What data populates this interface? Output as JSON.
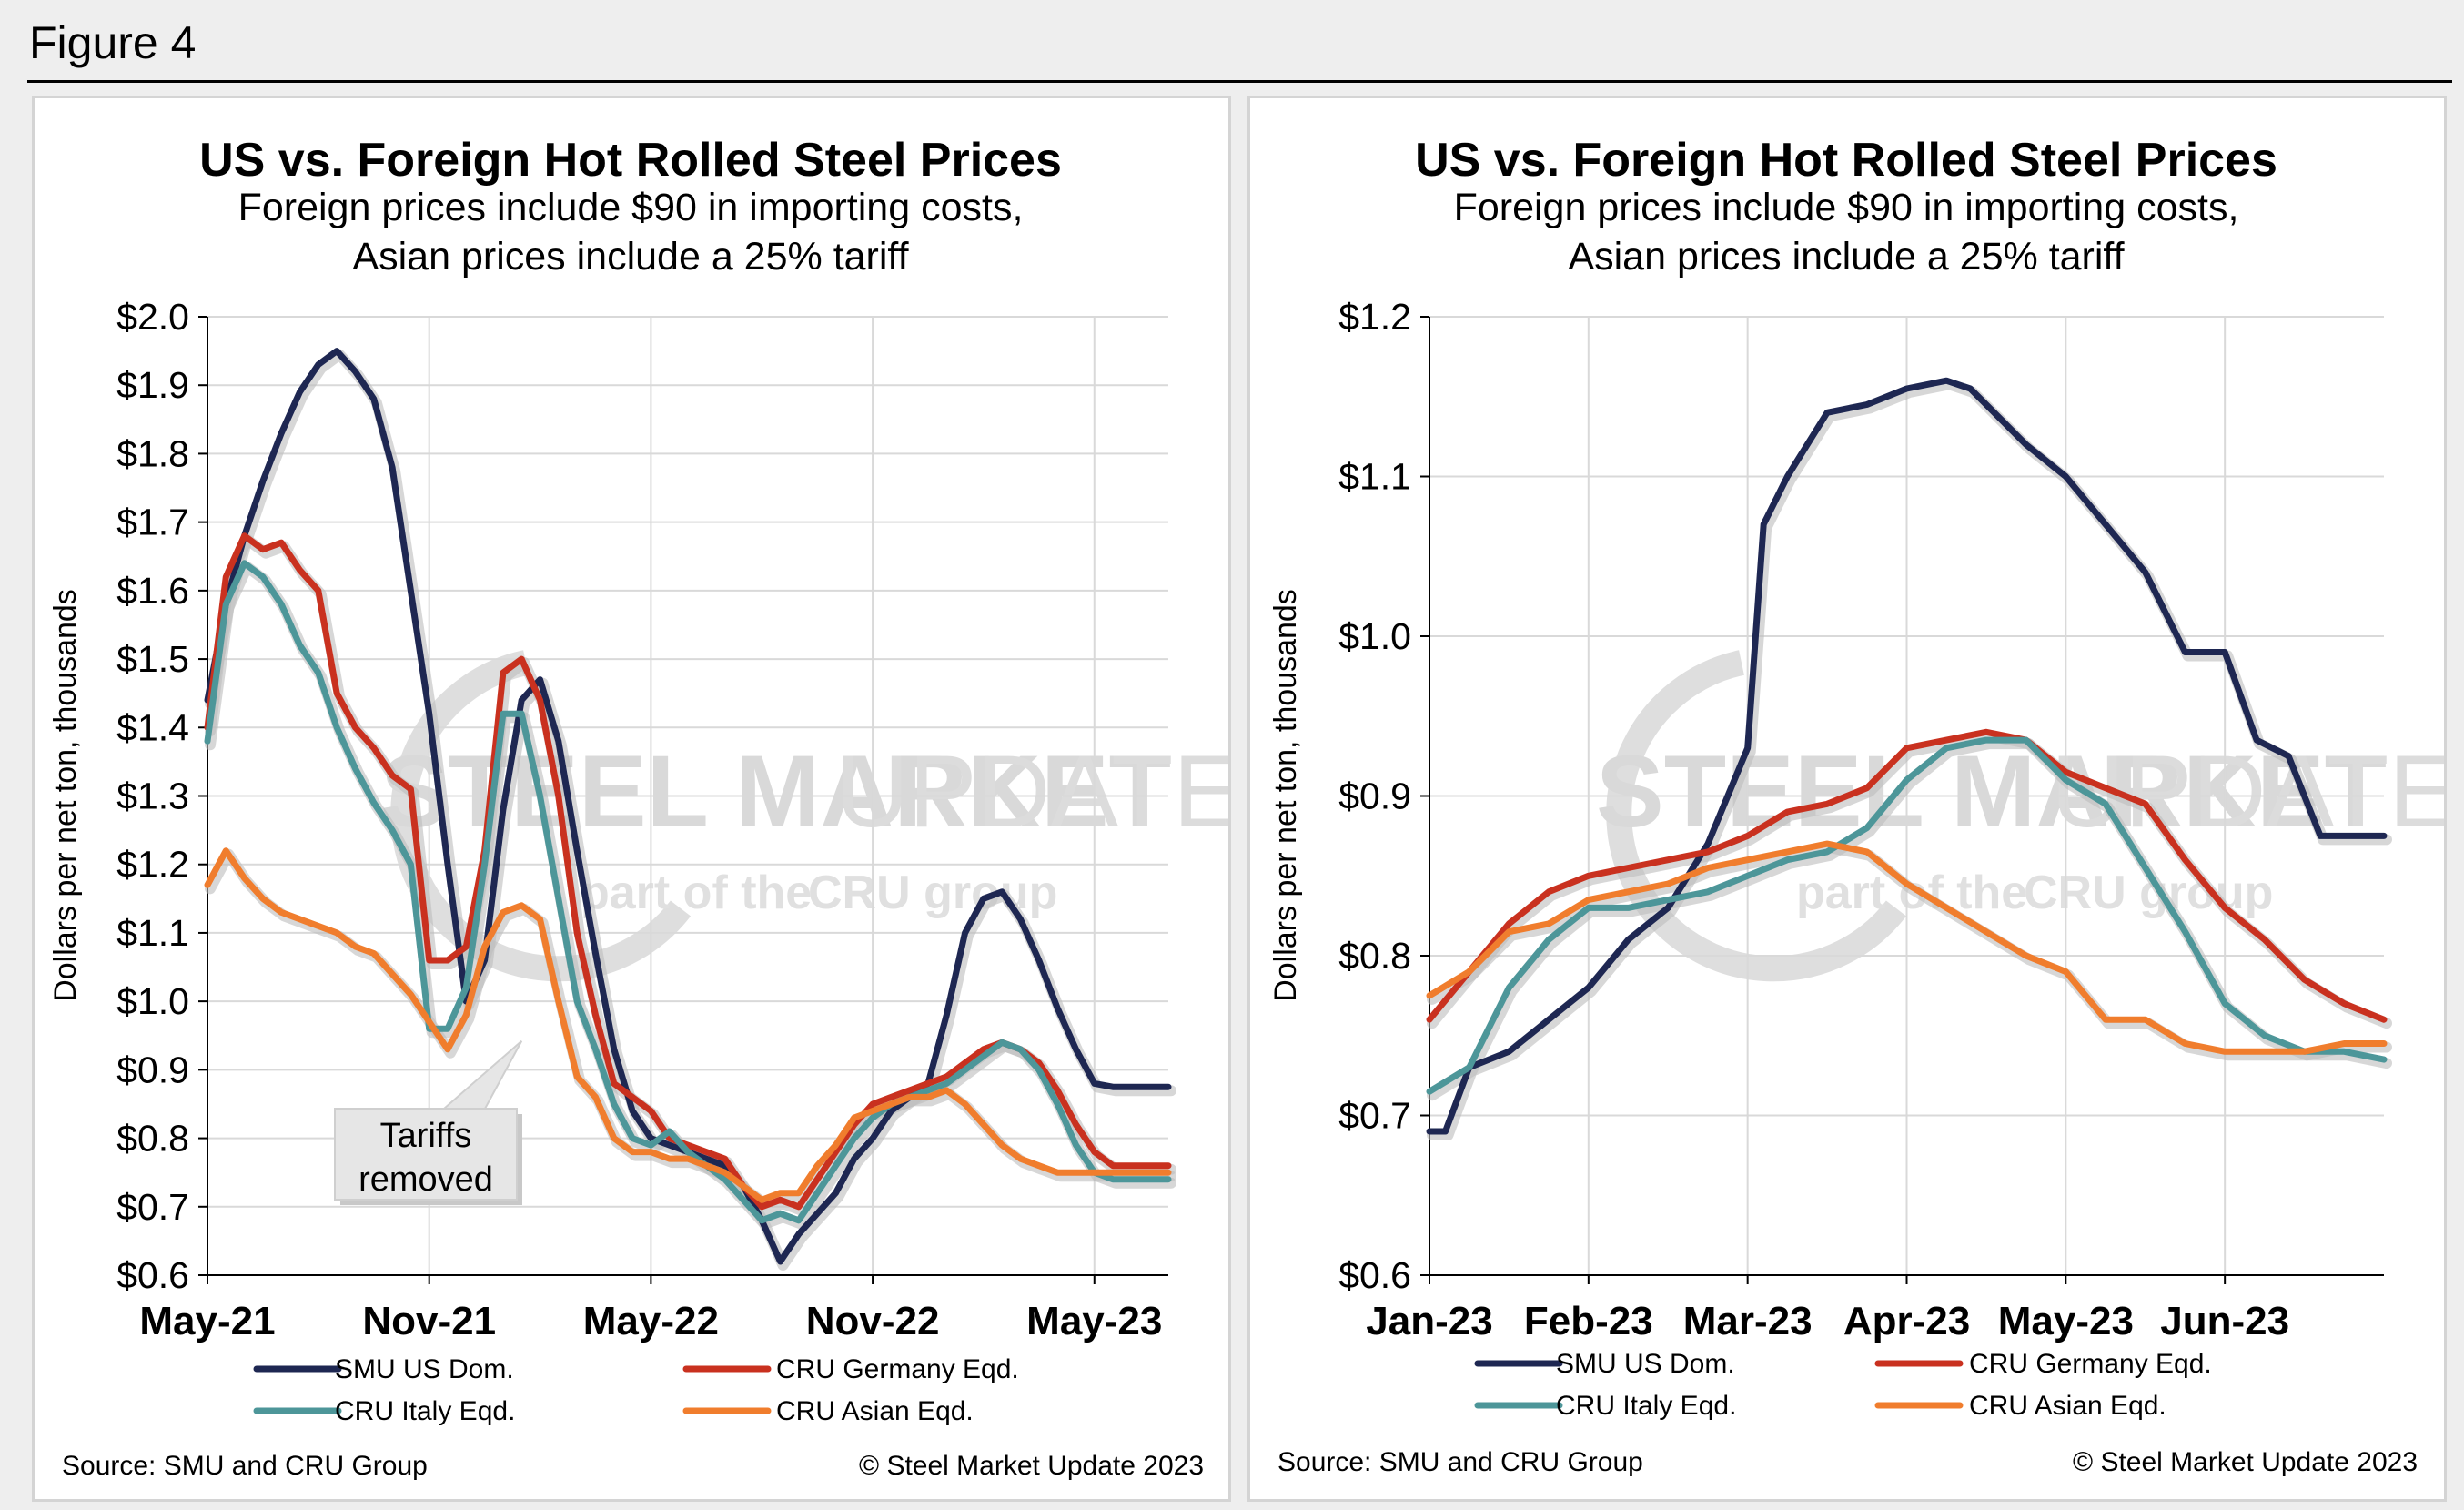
{
  "figure_label": "Figure 4",
  "watermark": {
    "brand": "STEEL MARKET",
    "brand2": "UPDATE",
    "tagline": "part of the",
    "group": "CRU group"
  },
  "colors": {
    "smu": "#1e2752",
    "germany": "#c9311f",
    "italy": "#4d9699",
    "asian": "#f07d2d"
  },
  "chart_data": [
    {
      "type": "line",
      "title": "US vs. Foreign Hot Rolled Steel Prices",
      "subtitle_line1": "Foreign prices include $90 in importing costs,",
      "subtitle_line2": "Asian prices include a 25% tariff",
      "ylabel": "Dollars per net ton, thousands",
      "ylim": [
        0.6,
        2.0
      ],
      "yticks": [
        0.6,
        0.7,
        0.8,
        0.9,
        1.0,
        1.1,
        1.2,
        1.3,
        1.4,
        1.5,
        1.6,
        1.7,
        1.8,
        1.9,
        2.0
      ],
      "ytick_labels": [
        "$0.6",
        "$0.7",
        "$0.8",
        "$0.9",
        "$1.0",
        "$1.1",
        "$1.2",
        "$1.3",
        "$1.4",
        "$1.5",
        "$1.6",
        "$1.7",
        "$1.8",
        "$1.9",
        "$2.0"
      ],
      "xlim": [
        0,
        26
      ],
      "xticks": [
        0,
        6,
        12,
        18,
        24
      ],
      "xtick_labels": [
        "May-21",
        "Nov-21",
        "May-22",
        "Nov-22",
        "May-23"
      ],
      "annotation": {
        "line1": "Tariffs",
        "line2": "removed",
        "x": 8.5,
        "y": 0.95
      },
      "series": [
        {
          "name": "SMU US Dom.",
          "color_key": "smu",
          "x": [
            0,
            0.5,
            1,
            1.5,
            2,
            2.5,
            3,
            3.5,
            4,
            4.5,
            5,
            5.5,
            6,
            6.5,
            7,
            7.5,
            8,
            8.5,
            9,
            9.5,
            10,
            10.5,
            11,
            11.5,
            12,
            12.5,
            13,
            13.5,
            14,
            14.5,
            15,
            15.5,
            16,
            16.5,
            17,
            17.5,
            18,
            18.5,
            19,
            19.5,
            20,
            20.5,
            21,
            21.5,
            22,
            22.5,
            23,
            23.5,
            24,
            24.5,
            25,
            25.5,
            26
          ],
          "y": [
            1.44,
            1.58,
            1.68,
            1.76,
            1.83,
            1.89,
            1.93,
            1.95,
            1.92,
            1.88,
            1.78,
            1.6,
            1.42,
            1.2,
            1.0,
            1.06,
            1.28,
            1.44,
            1.47,
            1.38,
            1.22,
            1.07,
            0.93,
            0.84,
            0.8,
            0.79,
            0.78,
            0.77,
            0.76,
            0.73,
            0.68,
            0.62,
            0.66,
            0.69,
            0.72,
            0.77,
            0.8,
            0.84,
            0.86,
            0.88,
            0.98,
            1.1,
            1.15,
            1.16,
            1.12,
            1.06,
            0.99,
            0.93,
            0.88,
            0.875,
            0.875,
            0.875,
            0.875
          ]
        },
        {
          "name": "CRU Germany Eqd.",
          "color_key": "germany",
          "x": [
            0,
            0.5,
            1,
            1.5,
            2,
            2.5,
            3,
            3.5,
            4,
            4.5,
            5,
            5.5,
            6,
            6.5,
            7,
            7.5,
            8,
            8.5,
            9,
            9.5,
            10,
            10.5,
            11,
            11.5,
            12,
            12.5,
            13,
            13.5,
            14,
            14.5,
            15,
            15.5,
            16,
            16.5,
            17,
            17.5,
            18,
            18.5,
            19,
            19.5,
            20,
            20.5,
            21,
            21.5,
            22,
            22.5,
            23,
            23.5,
            24,
            24.5,
            25,
            25.5,
            26
          ],
          "y": [
            1.4,
            1.62,
            1.68,
            1.66,
            1.67,
            1.63,
            1.6,
            1.45,
            1.4,
            1.37,
            1.33,
            1.31,
            1.06,
            1.06,
            1.08,
            1.22,
            1.48,
            1.5,
            1.44,
            1.3,
            1.1,
            0.98,
            0.88,
            0.86,
            0.84,
            0.8,
            0.79,
            0.78,
            0.77,
            0.73,
            0.7,
            0.71,
            0.7,
            0.74,
            0.78,
            0.82,
            0.85,
            0.86,
            0.87,
            0.88,
            0.89,
            0.91,
            0.93,
            0.94,
            0.93,
            0.91,
            0.87,
            0.82,
            0.78,
            0.76,
            0.76,
            0.76,
            0.76
          ]
        },
        {
          "name": "CRU Italy Eqd.",
          "color_key": "italy",
          "x": [
            0,
            0.5,
            1,
            1.5,
            2,
            2.5,
            3,
            3.5,
            4,
            4.5,
            5,
            5.5,
            6,
            6.5,
            7,
            7.5,
            8,
            8.5,
            9,
            9.5,
            10,
            10.5,
            11,
            11.5,
            12,
            12.5,
            13,
            13.5,
            14,
            14.5,
            15,
            15.5,
            16,
            16.5,
            17,
            17.5,
            18,
            18.5,
            19,
            19.5,
            20,
            20.5,
            21,
            21.5,
            22,
            22.5,
            23,
            23.5,
            24,
            24.5,
            25,
            25.5,
            26
          ],
          "y": [
            1.38,
            1.58,
            1.64,
            1.62,
            1.58,
            1.52,
            1.48,
            1.4,
            1.34,
            1.29,
            1.25,
            1.2,
            0.96,
            0.96,
            1.02,
            1.2,
            1.42,
            1.42,
            1.3,
            1.15,
            1.0,
            0.93,
            0.85,
            0.8,
            0.79,
            0.81,
            0.78,
            0.76,
            0.74,
            0.71,
            0.68,
            0.69,
            0.68,
            0.72,
            0.76,
            0.8,
            0.83,
            0.85,
            0.86,
            0.87,
            0.88,
            0.9,
            0.92,
            0.94,
            0.93,
            0.9,
            0.85,
            0.79,
            0.75,
            0.74,
            0.74,
            0.74,
            0.74
          ]
        },
        {
          "name": "CRU Asian Eqd.",
          "color_key": "asian",
          "x": [
            0,
            0.5,
            1,
            1.5,
            2,
            2.5,
            3,
            3.5,
            4,
            4.5,
            5,
            5.5,
            6,
            6.5,
            7,
            7.5,
            8,
            8.5,
            9,
            9.5,
            10,
            10.5,
            11,
            11.5,
            12,
            12.5,
            13,
            13.5,
            14,
            14.5,
            15,
            15.5,
            16,
            16.5,
            17,
            17.5,
            18,
            18.5,
            19,
            19.5,
            20,
            20.5,
            21,
            21.5,
            22,
            22.5,
            23,
            23.5,
            24,
            24.5,
            25,
            25.5,
            26
          ],
          "y": [
            1.17,
            1.22,
            1.18,
            1.15,
            1.13,
            1.12,
            1.11,
            1.1,
            1.08,
            1.07,
            1.04,
            1.01,
            0.97,
            0.93,
            0.98,
            1.08,
            1.13,
            1.14,
            1.12,
            1.0,
            0.89,
            0.86,
            0.8,
            0.78,
            0.78,
            0.77,
            0.77,
            0.76,
            0.75,
            0.73,
            0.71,
            0.72,
            0.72,
            0.76,
            0.79,
            0.83,
            0.84,
            0.85,
            0.86,
            0.86,
            0.87,
            0.85,
            0.82,
            0.79,
            0.77,
            0.76,
            0.75,
            0.75,
            0.75,
            0.75,
            0.75,
            0.75,
            0.75
          ]
        }
      ]
    },
    {
      "type": "line",
      "title": "US vs. Foreign Hot Rolled Steel Prices",
      "subtitle_line1": "Foreign prices include $90 in importing costs,",
      "subtitle_line2": "Asian prices include a 25% tariff",
      "ylabel": "Dollars per net ton, thousands",
      "ylim": [
        0.6,
        1.2
      ],
      "yticks": [
        0.6,
        0.7,
        0.8,
        0.9,
        1.0,
        1.1,
        1.2
      ],
      "ytick_labels": [
        "$0.6",
        "$0.7",
        "$0.8",
        "$0.9",
        "$1.0",
        "$1.1",
        "$1.2"
      ],
      "xlim": [
        0,
        6
      ],
      "xticks": [
        0,
        1,
        2,
        3,
        4,
        5
      ],
      "xtick_labels": [
        "Jan-23",
        "Feb-23",
        "Mar-23",
        "Apr-23",
        "May-23",
        "Jun-23"
      ],
      "series": [
        {
          "name": "SMU US Dom.",
          "color_key": "smu",
          "x": [
            0,
            0.1,
            0.25,
            0.5,
            0.75,
            1,
            1.25,
            1.5,
            1.75,
            2,
            2.1,
            2.25,
            2.5,
            2.75,
            3,
            3.25,
            3.4,
            3.5,
            3.75,
            4,
            4.25,
            4.5,
            4.75,
            5,
            5.2,
            5.4,
            5.6,
            5.75,
            6
          ],
          "y": [
            0.69,
            0.69,
            0.73,
            0.74,
            0.76,
            0.78,
            0.81,
            0.83,
            0.87,
            0.93,
            1.07,
            1.1,
            1.14,
            1.145,
            1.155,
            1.16,
            1.155,
            1.145,
            1.12,
            1.1,
            1.07,
            1.04,
            0.99,
            0.99,
            0.935,
            0.925,
            0.875,
            0.875,
            0.875
          ]
        },
        {
          "name": "CRU Germany Eqd.",
          "color_key": "germany",
          "x": [
            0,
            0.25,
            0.5,
            0.75,
            1,
            1.25,
            1.5,
            1.75,
            2,
            2.25,
            2.5,
            2.75,
            3,
            3.25,
            3.5,
            3.75,
            4,
            4.25,
            4.5,
            4.75,
            5,
            5.25,
            5.5,
            5.75,
            6
          ],
          "y": [
            0.76,
            0.79,
            0.82,
            0.84,
            0.85,
            0.855,
            0.86,
            0.865,
            0.875,
            0.89,
            0.895,
            0.905,
            0.93,
            0.935,
            0.94,
            0.935,
            0.915,
            0.905,
            0.895,
            0.86,
            0.83,
            0.81,
            0.785,
            0.77,
            0.76
          ]
        },
        {
          "name": "CRU Italy Eqd.",
          "color_key": "italy",
          "x": [
            0,
            0.25,
            0.5,
            0.75,
            1,
            1.25,
            1.5,
            1.75,
            2,
            2.25,
            2.5,
            2.75,
            3,
            3.25,
            3.5,
            3.75,
            4,
            4.25,
            4.5,
            4.75,
            5,
            5.25,
            5.5,
            5.75,
            6
          ],
          "y": [
            0.715,
            0.73,
            0.78,
            0.81,
            0.83,
            0.83,
            0.835,
            0.84,
            0.85,
            0.86,
            0.865,
            0.88,
            0.91,
            0.93,
            0.935,
            0.935,
            0.91,
            0.895,
            0.855,
            0.815,
            0.77,
            0.75,
            0.74,
            0.74,
            0.735
          ]
        },
        {
          "name": "CRU Asian Eqd.",
          "color_key": "asian",
          "x": [
            0,
            0.25,
            0.5,
            0.75,
            1,
            1.25,
            1.5,
            1.75,
            2,
            2.25,
            2.5,
            2.75,
            3,
            3.25,
            3.5,
            3.75,
            4,
            4.25,
            4.5,
            4.75,
            5,
            5.25,
            5.5,
            5.75,
            6
          ],
          "y": [
            0.775,
            0.79,
            0.815,
            0.82,
            0.835,
            0.84,
            0.845,
            0.855,
            0.86,
            0.865,
            0.87,
            0.865,
            0.845,
            0.83,
            0.815,
            0.8,
            0.79,
            0.76,
            0.76,
            0.745,
            0.74,
            0.74,
            0.74,
            0.745,
            0.745
          ]
        }
      ]
    }
  ],
  "legend_items": [
    "SMU US Dom.",
    "CRU Germany Eqd.",
    "CRU Italy Eqd.",
    "CRU Asian Eqd."
  ],
  "footer": {
    "source": "Source: SMU and CRU Group",
    "copyright": "© Steel Market Update 2023"
  }
}
